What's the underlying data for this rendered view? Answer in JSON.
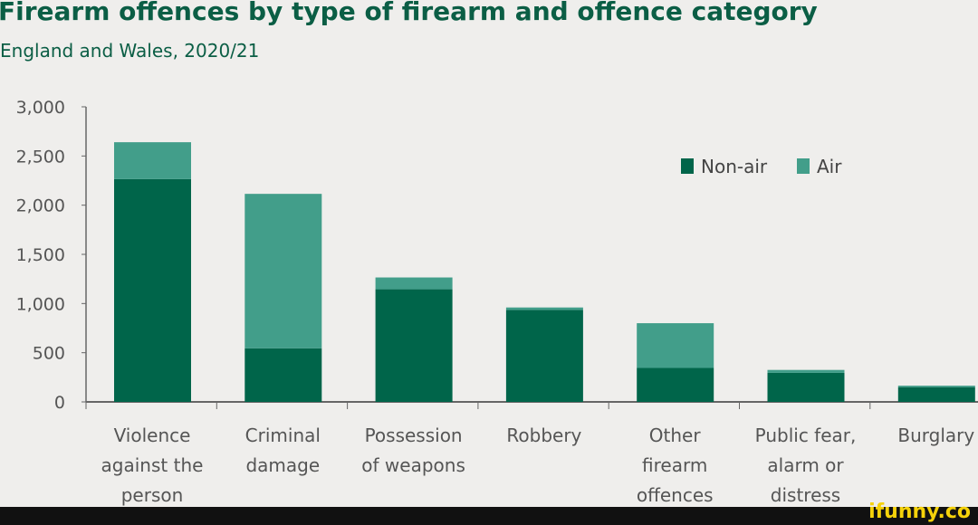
{
  "chart_data": {
    "type": "bar",
    "stacked": true,
    "title": "Firearm offences by type of firearm and offence category",
    "subtitle": "England and Wales, 2020/21",
    "categories": [
      [
        "Violence",
        "against the",
        "person"
      ],
      [
        "Criminal",
        "damage"
      ],
      [
        "Possession",
        "of weapons"
      ],
      [
        "Robbery"
      ],
      [
        "Other",
        "firearm",
        "offences"
      ],
      [
        "Public fear,",
        "alarm or",
        "distress"
      ],
      [
        "Burglary"
      ]
    ],
    "series": [
      {
        "name": "Non-air",
        "color": "#00654a",
        "values": [
          2265,
          545,
          1145,
          935,
          345,
          295,
          150
        ]
      },
      {
        "name": "Air",
        "color": "#429e8a",
        "values": [
          375,
          1570,
          120,
          25,
          455,
          30,
          15
        ]
      }
    ],
    "ylim": [
      0,
      3000
    ],
    "yticks": [
      "0",
      "500",
      "1,000",
      "1,500",
      "2,000",
      "2,500",
      "3,000"
    ],
    "grid": false,
    "legend": "top-right"
  },
  "watermark": "ifunny.co"
}
